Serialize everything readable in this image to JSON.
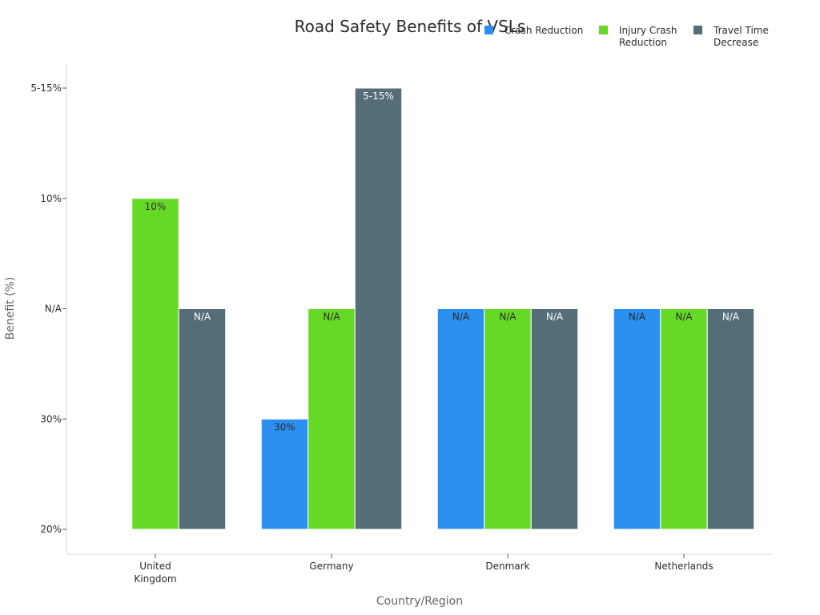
{
  "chart_data": {
    "type": "bar",
    "title": "Road Safety Benefits of VSLs",
    "xlabel": "Country/Region",
    "ylabel": "Benefit (%)",
    "y_axis": {
      "type": "categorical",
      "ticks": [
        "20%",
        "30%",
        "N/A",
        "10%",
        "5-15%"
      ]
    },
    "categories": [
      "United Kingdom",
      "Germany",
      "Denmark",
      "Netherlands"
    ],
    "series": [
      {
        "name": "Crash Reduction",
        "color": "#2b8ff2",
        "values": [
          null,
          "30%",
          "N/A",
          "N/A"
        ],
        "labels": [
          "",
          "30%",
          "N/A",
          "N/A"
        ],
        "label_color": "#2b2b2b"
      },
      {
        "name": "Injury Crash Reduction",
        "color": "#66d927",
        "values": [
          "10%",
          "N/A",
          "N/A",
          "N/A"
        ],
        "labels": [
          "10%",
          "N/A",
          "N/A",
          "N/A"
        ],
        "label_color": "#2b2b2b"
      },
      {
        "name": "Travel Time Decrease",
        "color": "#556d77",
        "values": [
          "N/A",
          "5-15%",
          "N/A",
          "N/A"
        ],
        "labels": [
          "N/A",
          "5-15%",
          "N/A",
          "N/A"
        ],
        "label_color": "#ffffff"
      }
    ],
    "legend": {
      "position": "top-right",
      "entries": [
        "Crash Reduction",
        "Injury Crash Reduction",
        "Travel Time Decrease"
      ]
    },
    "grid": false
  }
}
